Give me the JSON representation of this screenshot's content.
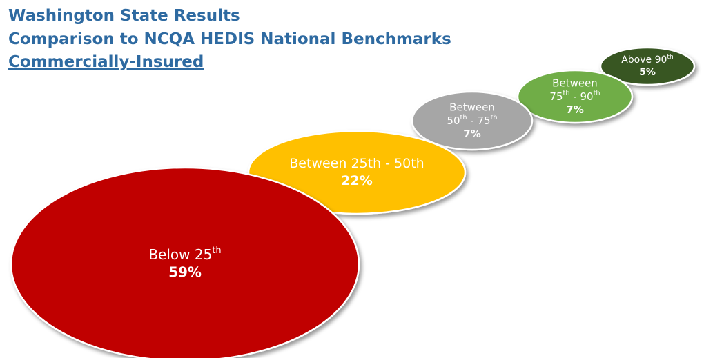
{
  "header": {
    "title": "Washington State Results",
    "subtitle": "Comparison to NCQA HEDIS National Benchmarks",
    "group": "Commercially-Insured"
  },
  "nodes": [
    {
      "label": [
        "Below 25th"
      ],
      "value": "59%",
      "color": "#c00000"
    },
    {
      "label": [
        "Between 25th - 50th"
      ],
      "value": "22%",
      "color": "#ffc000"
    },
    {
      "label": [
        "Between",
        "50th - 75th"
      ],
      "value": "7%",
      "color": "#a6a6a6"
    },
    {
      "label": [
        "Between",
        "75th - 90th"
      ],
      "value": "7%",
      "color": "#70ad47"
    },
    {
      "label": [
        "Above 90th"
      ],
      "value": "5%",
      "color": "#375623"
    }
  ]
}
